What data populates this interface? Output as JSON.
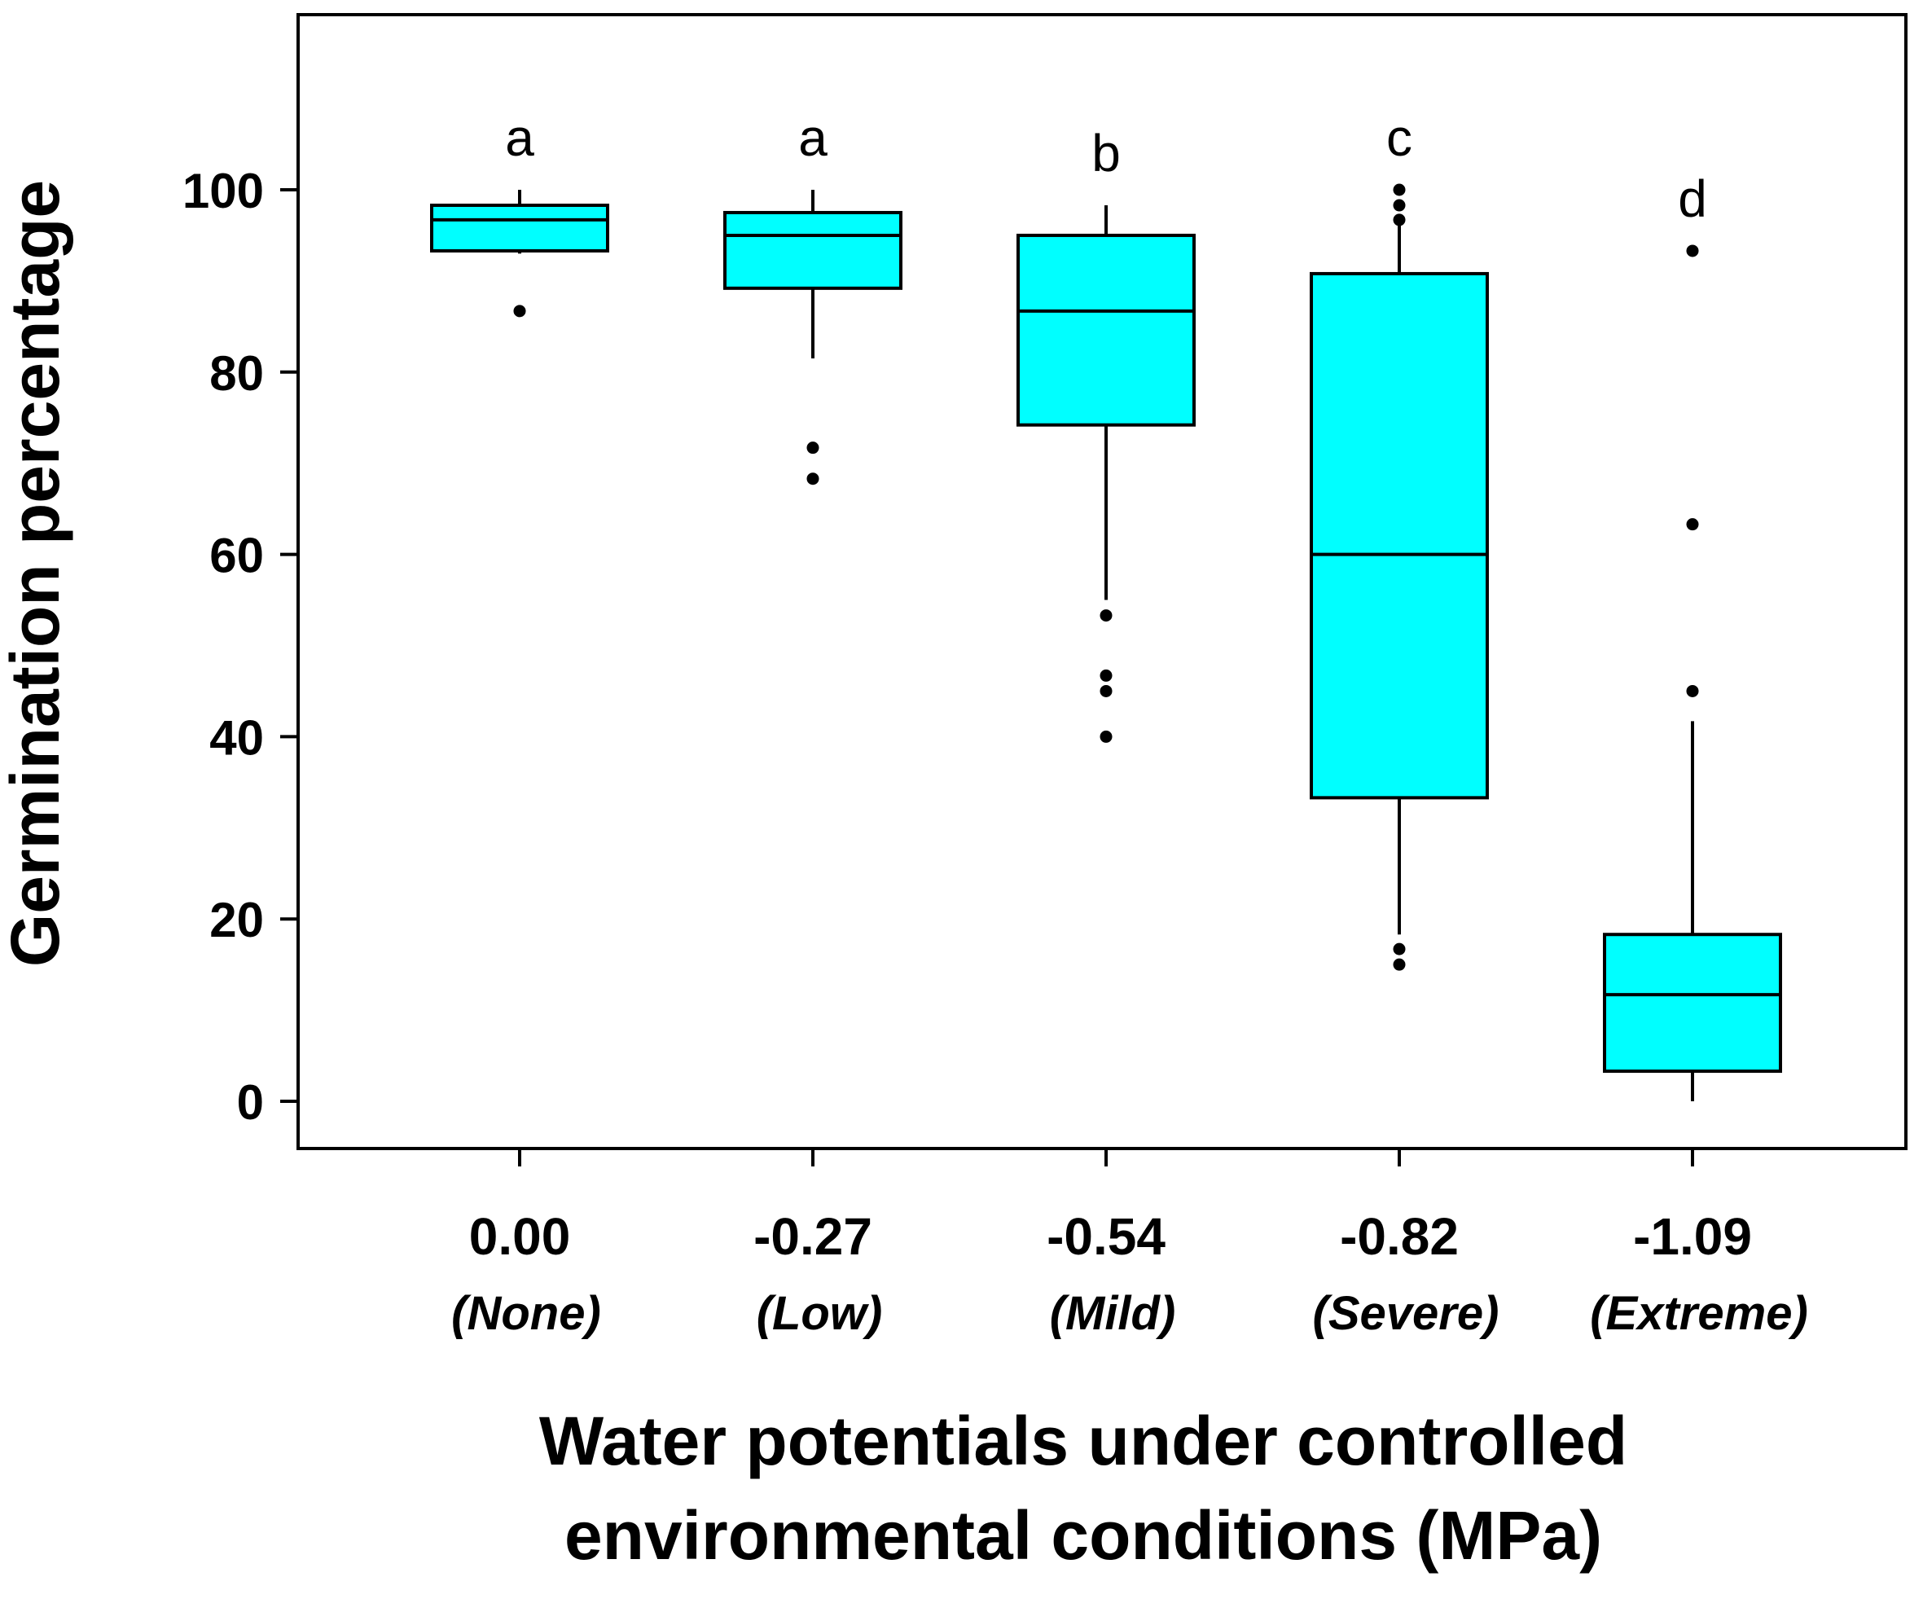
{
  "chart_data": {
    "type": "box",
    "title": "",
    "xlabel_lines": [
      "Water potentials under controlled",
      "environmental conditions (MPa)"
    ],
    "ylabel": "Germination percentage",
    "ylim": [
      -5,
      120
    ],
    "yticks": [
      0,
      20,
      40,
      60,
      80,
      100
    ],
    "box_color": "#00FFFF",
    "line_color": "#000000",
    "groups": [
      {
        "label": "0.00",
        "sublabel": "(None)",
        "letter": "a",
        "whisker_low": 93,
        "q1": 93.3,
        "median": 96.7,
        "q3": 98.3,
        "whisker_high": 100,
        "outliers": [
          86.7
        ]
      },
      {
        "label": "-0.27",
        "sublabel": "(Low)",
        "letter": "a",
        "whisker_low": 81.5,
        "q1": 89.2,
        "median": 95,
        "q3": 97.5,
        "whisker_high": 100,
        "outliers": [
          71.7,
          68.3
        ]
      },
      {
        "label": "-0.54",
        "sublabel": "(Mild)",
        "letter": "b",
        "whisker_low": 55,
        "q1": 74.2,
        "median": 86.7,
        "q3": 95,
        "whisker_high": 98.3,
        "outliers": [
          53.3,
          46.7,
          45,
          40
        ]
      },
      {
        "label": "-0.82",
        "sublabel": "(Severe)",
        "letter": "c",
        "whisker_low": 18.3,
        "q1": 33.3,
        "median": 60,
        "q3": 90.8,
        "whisker_high": 96.5,
        "outliers": [
          100,
          98.3,
          96.7,
          16.7,
          15
        ]
      },
      {
        "label": "-1.09",
        "sublabel": "(Extreme)",
        "letter": "d",
        "whisker_low": 0,
        "q1": 3.3,
        "median": 11.7,
        "q3": 18.3,
        "whisker_high": 41.7,
        "outliers": [
          93.3,
          63.3,
          45
        ]
      }
    ]
  }
}
